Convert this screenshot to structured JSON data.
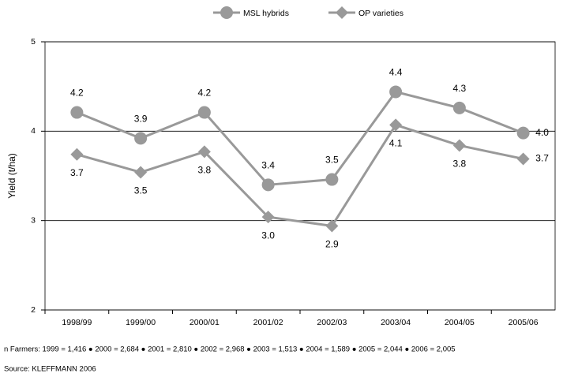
{
  "chart_data": {
    "type": "line",
    "categories": [
      "1998/99",
      "1999/00",
      "2000/01",
      "2001/02",
      "2002/03",
      "2003/04",
      "2004/05",
      "2005/06"
    ],
    "y_label": "Yield (t/ha)",
    "ylim": [
      2,
      5
    ],
    "yticks": [
      2,
      3,
      4,
      5
    ],
    "grid": true,
    "legend": "top",
    "series": [
      {
        "name": "MSL hybrids",
        "color": "#999999",
        "marker": "circle",
        "values": [
          4.21,
          3.92,
          4.21,
          3.4,
          3.46,
          4.44,
          4.26,
          3.98
        ],
        "value_labels": [
          "4.2",
          "3.9",
          "4.2",
          "3.4",
          "3.5",
          "4.4",
          "4.3",
          "4.0"
        ]
      },
      {
        "name": "OP varieties",
        "color": "#999999",
        "marker": "diamond",
        "values": [
          3.74,
          3.54,
          3.77,
          3.04,
          2.94,
          4.07,
          3.84,
          3.69
        ],
        "value_labels": [
          "3.7",
          "3.5",
          "3.8",
          "3.0",
          "2.9",
          "4.1",
          "3.8",
          "3.7"
        ]
      }
    ],
    "note": "n Farmers: 1999 = 1,416 ● 2000 = 2,684 ● 2001 = 2,810 ● 2002 = 2,968 ● 2003 = 1,513 ● 2004 = 1,589 ● 2005 = 2,044 ● 2006 = 2,005",
    "source": "Source: KLEFFMANN 2006"
  }
}
